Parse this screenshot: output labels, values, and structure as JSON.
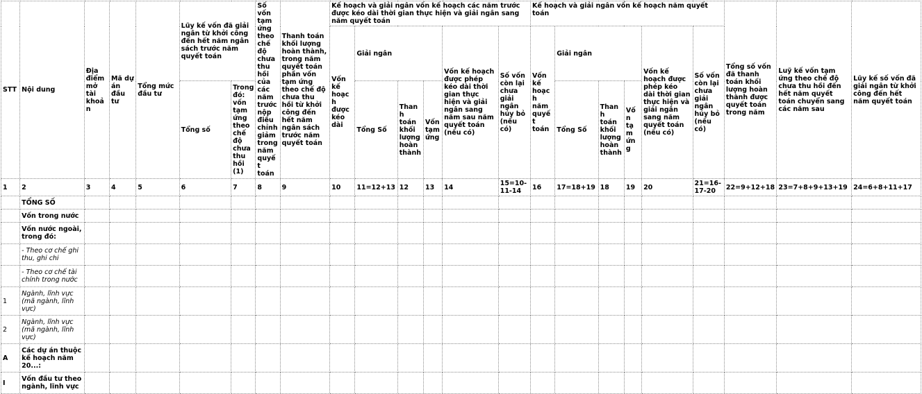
{
  "header": {
    "stt": "STT",
    "noi_dung": "Nội dung",
    "dia_diem": "Địa điểm mở tài khoản",
    "ma_du_an": "Mã dự án đầu tư",
    "tong_muc": "Tổng mức đầu tư",
    "luy_ke_group": "Lũy kế vốn đã giải ngân từ khởi công đến hết năm ngân sách trước năm quyết toán",
    "tong_so": "Tổng số",
    "trong_do": "Trong đó: vốn tạm ứng theo chế độ chưa thu hồi (1)",
    "so_von_tam_ung": "Số vốn tạm ứng theo chế độ chưa thu hồi của các năm trước nộp điều chỉnh giảm trong năm quyết toán",
    "thanh_toan_kl": "Thanh toán khối lượng hoàn thành, trong năm quyết toán phần vốn tạm ứng theo chế độ chưa thu hồi từ khởi công đến hết năm ngân sách trước năm quyết toán",
    "kh_truoc_group": "Kế hoạch và giải ngân vốn kế hoạch các năm trước được kéo dài thời gian thực hiện và giải ngân sang năm quyết toán",
    "von_kh_keo_dai": "Vốn kế hoạch được kéo dài",
    "giai_ngan": "Giải ngân",
    "tong_so_cap": "Tổng Số",
    "thanh_toan_klht": "Thanh toán khối lượng hoàn thành",
    "von_tam_ung": "Vốn tạm ứng",
    "von_kh_phep_keo_dai": "Vốn kế hoạch được phép kéo dài thời gian thực hiện và giải ngân sang năm sau năm quyết toán (nếu có)",
    "so_von_con_lai": "Số vốn còn lại chưa giải ngân hủy bỏ (nếu có)",
    "kh_nam_group": "Kế hoạch và giải ngân vốn kế hoạch năm quyết toán",
    "von_kh_nam_qt": "Vốn kế hoạch năm quyết toán",
    "von_kh_phep_keo_dai_2": "Vốn kế hoạch được phép kéo dài thời gian thực hiện và giải ngân sang năm quyết toán (nếu có)",
    "tong_so_von_tt": "Tổng số vốn đã thanh toán khối lượng hoàn thành được quyết toán trong năm",
    "luy_ke_tam_ung": "Luỹ kế vốn tạm ứng theo chế độ chưa thu hồi đến hết năm quyết toán chuyển sang các năm sau",
    "luy_ke_giai_ngan": "Lũy kế số vốn đã giải ngân từ khởi công đến hết năm quyết toán"
  },
  "numbers": [
    "1",
    "2",
    "3",
    "4",
    "5",
    "6",
    "7",
    "8",
    "9",
    "10",
    "11=12+13",
    "12",
    "13",
    "14",
    "15=10-11-14",
    "16",
    "17=18+19",
    "18",
    "19",
    "20",
    "21=16-17-20",
    "22=9+12+18",
    "23=7+8+9+13+19",
    "24=6+8+11+17"
  ],
  "rows": [
    {
      "stt": "",
      "label": "TỔNG SỐ"
    },
    {
      "stt": "",
      "label": "Vốn trong nước"
    },
    {
      "stt": "",
      "label": "Vốn nước ngoài, trong đó:"
    },
    {
      "stt": "",
      "label": "- Theo cơ chế ghi thu, ghi chi"
    },
    {
      "stt": "",
      "label": "- Theo cơ chế tài chính trong nước"
    },
    {
      "stt": "1",
      "label": "Ngành, lĩnh vực (mã ngành, lĩnh vực)"
    },
    {
      "stt": "2",
      "label": "Ngành, lĩnh vực (mã ngành, lĩnh vực)"
    },
    {
      "stt": "A",
      "label": "Các dự án thuộc kế hoạch năm 20...:"
    },
    {
      "stt": "I",
      "label": "Vốn đầu tư theo ngành, lĩnh vực"
    }
  ]
}
